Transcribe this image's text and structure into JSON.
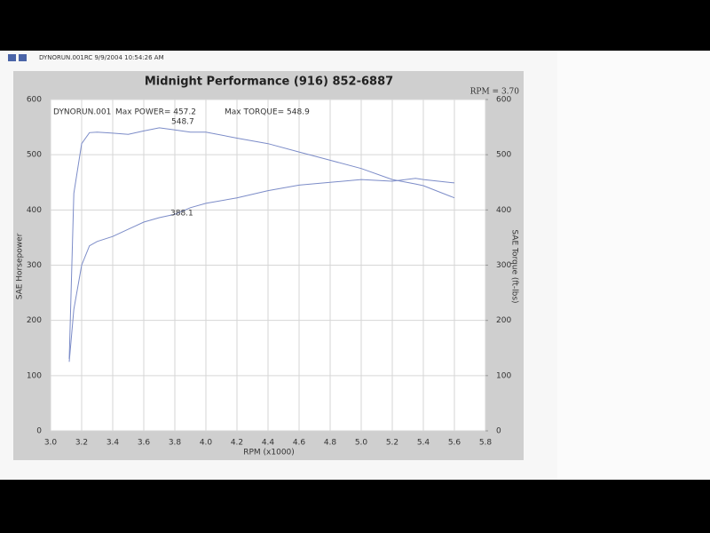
{
  "header": "DYNORUN.001RC  9/9/2004 10:54:26 AM",
  "chart_data": {
    "type": "line",
    "title": "Midnight Performance (916) 852-6887",
    "subtitle": "RPM = 3.70",
    "xlabel": "RPM (x1000)",
    "ylabel": "SAE Horsepower",
    "y2label": "SAE Torque (ft-lbs)",
    "annotations": [
      "DYNORUN.001",
      "Max POWER= 457.2",
      "Max TORQUE= 548.9",
      "548.7",
      "388.1"
    ],
    "x": [
      3.12,
      3.15,
      3.2,
      3.25,
      3.3,
      3.4,
      3.5,
      3.6,
      3.7,
      3.8,
      3.9,
      4.0,
      4.2,
      4.4,
      4.6,
      4.8,
      5.0,
      5.2,
      5.35,
      5.4,
      5.6
    ],
    "series": [
      {
        "name": "Torque",
        "color": "#7c8cc8",
        "axis": "y2",
        "values": [
          130,
          430,
          520,
          540,
          541,
          539,
          537,
          543,
          548.7,
          545,
          541,
          541,
          530,
          520,
          505,
          490,
          475,
          455,
          447,
          444,
          422
        ]
      },
      {
        "name": "Power",
        "color": "#7c8cc8",
        "values": [
          125,
          220,
          300,
          335,
          343,
          352,
          365,
          378,
          386,
          392,
          404,
          412,
          422,
          435,
          445,
          450,
          455,
          452,
          457.2,
          455,
          449
        ]
      }
    ],
    "xlim": [
      3.0,
      5.8
    ],
    "xticks": [
      {
        "value": 3,
        "label": "3.0"
      },
      3.2,
      3.4,
      3.6,
      3.8,
      {
        "value": 4,
        "label": "4.0"
      },
      4.2,
      4.4,
      4.6,
      4.8,
      {
        "value": 5,
        "label": "5.0"
      },
      5.2,
      5.4,
      5.6,
      5.8
    ],
    "ylim": [
      0,
      600
    ],
    "yticks": [
      0,
      100,
      200,
      300,
      400,
      500,
      600
    ],
    "y2lim": [
      0,
      600
    ],
    "y2ticks": [
      0,
      100,
      200,
      300,
      400,
      500,
      600
    ],
    "grid": true
  }
}
